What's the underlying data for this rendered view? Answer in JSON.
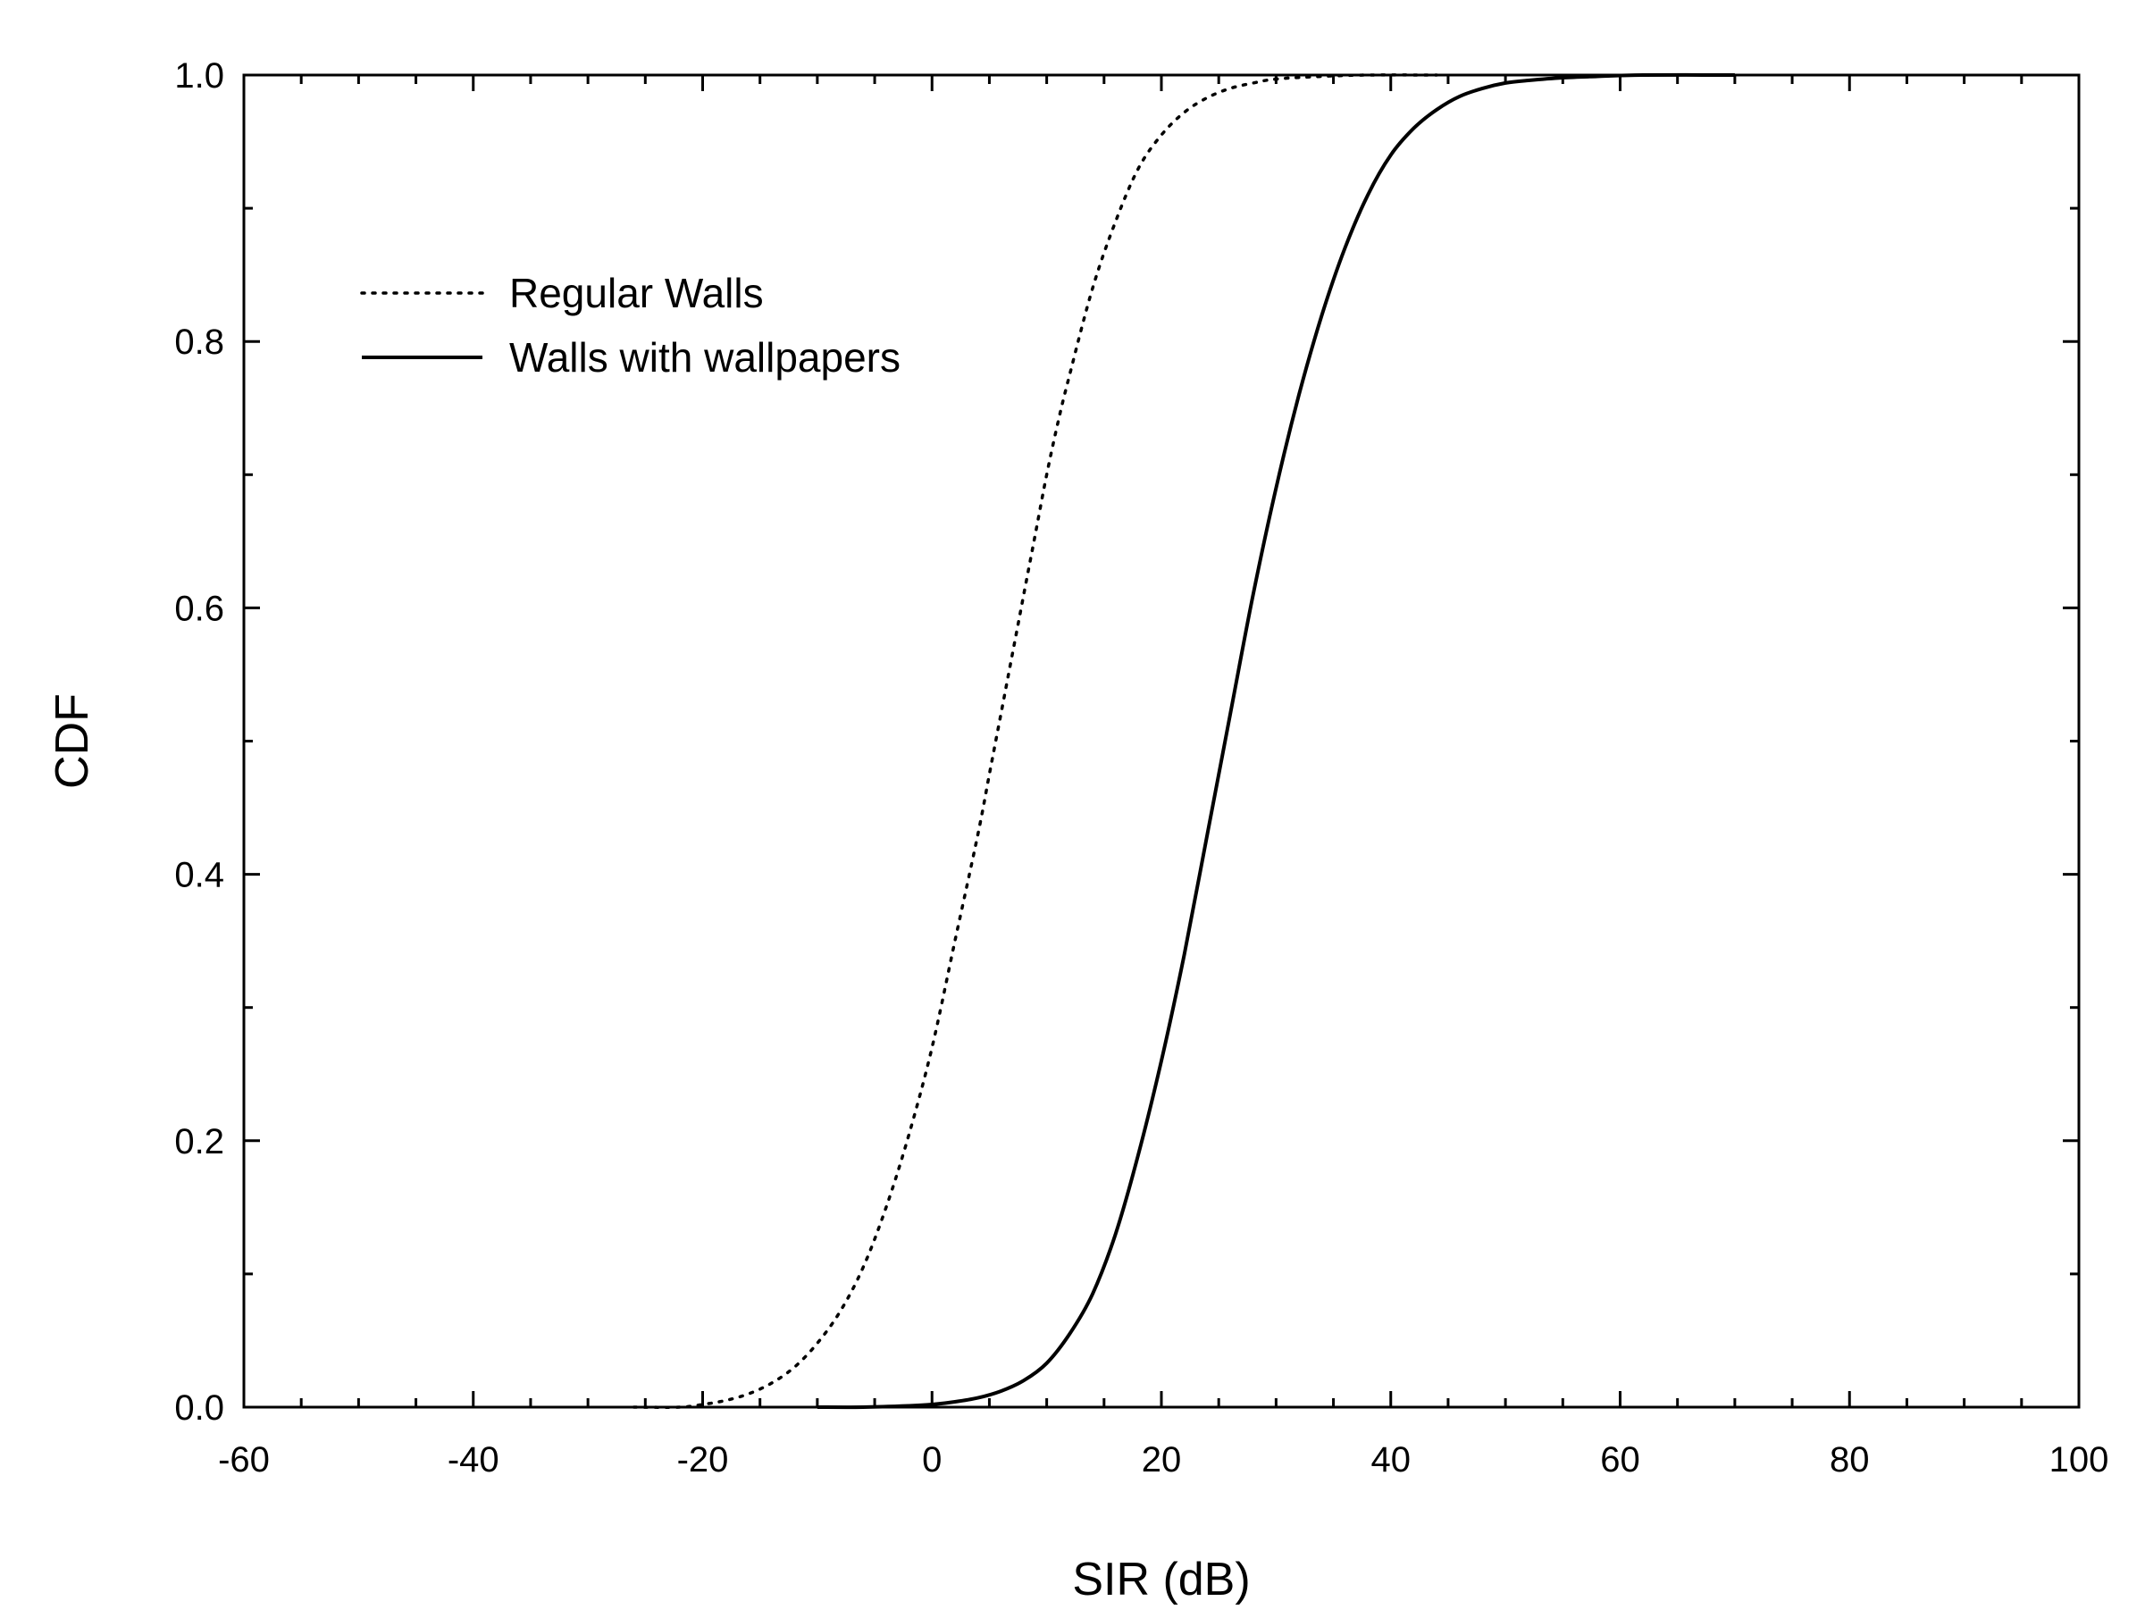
{
  "chart_data": {
    "type": "line",
    "title": "",
    "xlabel": "SIR (dB)",
    "ylabel": "CDF",
    "xlim": [
      -60,
      100
    ],
    "ylim": [
      0,
      1
    ],
    "xticks": [
      -60,
      -40,
      -20,
      0,
      20,
      40,
      60,
      80,
      100
    ],
    "yticks": [
      0,
      0.2,
      0.4,
      0.6,
      0.8,
      1.0
    ],
    "xtick_labels": [
      "-60",
      "-40",
      "-20",
      "0",
      "20",
      "40",
      "60",
      "80",
      "100"
    ],
    "ytick_labels": [
      "0.0",
      "0.2",
      "0.4",
      "0.6",
      "0.8",
      "1.0"
    ],
    "grid": false,
    "legend": {
      "position": "top-left"
    },
    "series": [
      {
        "name": "Regular Walls",
        "style": "dotted",
        "color": "#000000",
        "x": [
          -26,
          -22,
          -20,
          -18,
          -16,
          -14,
          -12,
          -10,
          -8,
          -6,
          -4,
          -2,
          0,
          2,
          4,
          5,
          6,
          7,
          8,
          9,
          10,
          11,
          12,
          14,
          16,
          18,
          20,
          22,
          24,
          26,
          28,
          30,
          34,
          38,
          44
        ],
        "y": [
          0.0,
          0.0,
          0.002,
          0.005,
          0.01,
          0.018,
          0.03,
          0.048,
          0.072,
          0.105,
          0.15,
          0.205,
          0.27,
          0.35,
          0.43,
          0.475,
          0.52,
          0.565,
          0.61,
          0.655,
          0.7,
          0.74,
          0.775,
          0.84,
          0.89,
          0.93,
          0.955,
          0.972,
          0.983,
          0.99,
          0.994,
          0.997,
          0.999,
          1.0,
          1.0
        ]
      },
      {
        "name": "Walls with wallpapers",
        "style": "solid",
        "color": "#000000",
        "x": [
          -10,
          -6,
          -2,
          0,
          2,
          4,
          6,
          8,
          10,
          12,
          14,
          16,
          18,
          20,
          22,
          24,
          26,
          28,
          30,
          32,
          34,
          36,
          38,
          40,
          42,
          44,
          46,
          48,
          50,
          52,
          55,
          58,
          62,
          70
        ],
        "y": [
          0.0,
          0.0,
          0.001,
          0.002,
          0.004,
          0.007,
          0.012,
          0.02,
          0.033,
          0.055,
          0.085,
          0.13,
          0.19,
          0.26,
          0.34,
          0.43,
          0.52,
          0.61,
          0.69,
          0.76,
          0.82,
          0.87,
          0.91,
          0.94,
          0.96,
          0.974,
          0.984,
          0.99,
          0.994,
          0.996,
          0.998,
          0.999,
          1.0,
          1.0
        ]
      }
    ]
  }
}
